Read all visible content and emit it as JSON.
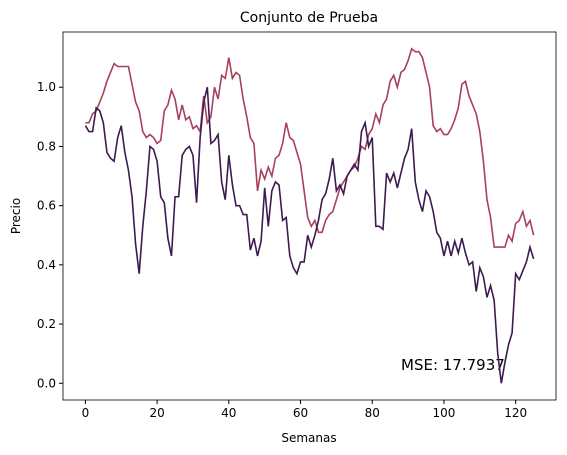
{
  "chart_data": {
    "type": "line",
    "title": "Conjunto de Prueba",
    "xlabel": "Semanas",
    "ylabel": "Precio",
    "annotation": "MSE: 17.7937",
    "x": [
      0,
      1,
      2,
      3,
      4,
      5,
      6,
      7,
      8,
      9,
      10,
      11,
      12,
      13,
      14,
      15,
      16,
      17,
      18,
      19,
      20,
      21,
      22,
      23,
      24,
      25,
      26,
      27,
      28,
      29,
      30,
      31,
      32,
      33,
      34,
      35,
      36,
      37,
      38,
      39,
      40,
      41,
      42,
      43,
      44,
      45,
      46,
      47,
      48,
      49,
      50,
      51,
      52,
      53,
      54,
      55,
      56,
      57,
      58,
      59,
      60,
      61,
      62,
      63,
      64,
      65,
      66,
      67,
      68,
      69,
      70,
      71,
      72,
      73,
      74,
      75,
      76,
      77,
      78,
      79,
      80,
      81,
      82,
      83,
      84,
      85,
      86,
      87,
      88,
      89,
      90,
      91,
      92,
      93,
      94,
      95,
      96,
      97,
      98,
      99,
      100,
      101,
      102,
      103,
      104,
      105,
      106,
      107,
      108,
      109,
      110,
      111,
      112,
      113,
      114,
      115,
      116,
      117,
      118,
      119,
      120,
      121,
      122,
      123,
      124,
      125
    ],
    "series": [
      {
        "color": "#a8405c",
        "values": [
          0.88,
          0.88,
          0.91,
          0.92,
          0.95,
          0.98,
          1.02,
          1.05,
          1.08,
          1.07,
          1.07,
          1.07,
          1.07,
          1.01,
          0.95,
          0.92,
          0.85,
          0.83,
          0.84,
          0.83,
          0.81,
          0.82,
          0.92,
          0.94,
          0.99,
          0.96,
          0.89,
          0.94,
          0.89,
          0.9,
          0.86,
          0.87,
          0.85,
          0.97,
          0.88,
          0.9,
          1.0,
          0.96,
          1.04,
          1.03,
          1.1,
          1.03,
          1.05,
          1.04,
          0.96,
          0.9,
          0.83,
          0.81,
          0.65,
          0.72,
          0.69,
          0.73,
          0.7,
          0.76,
          0.77,
          0.81,
          0.88,
          0.83,
          0.82,
          0.78,
          0.74,
          0.65,
          0.56,
          0.53,
          0.55,
          0.51,
          0.51,
          0.55,
          0.57,
          0.58,
          0.62,
          0.66,
          0.68,
          0.7,
          0.72,
          0.73,
          0.76,
          0.8,
          0.79,
          0.84,
          0.86,
          0.91,
          0.88,
          0.94,
          0.96,
          1.02,
          1.04,
          1.0,
          1.05,
          1.06,
          1.09,
          1.13,
          1.12,
          1.12,
          1.1,
          1.05,
          1.0,
          0.87,
          0.85,
          0.86,
          0.84,
          0.84,
          0.86,
          0.89,
          0.93,
          1.01,
          1.02,
          0.97,
          0.94,
          0.91,
          0.85,
          0.75,
          0.62,
          0.56,
          0.46,
          0.46,
          0.46,
          0.46,
          0.5,
          0.48,
          0.54,
          0.55,
          0.58,
          0.53,
          0.55,
          0.5
        ]
      },
      {
        "color": "#3d1a4f",
        "values": [
          0.87,
          0.85,
          0.85,
          0.93,
          0.92,
          0.88,
          0.78,
          0.76,
          0.75,
          0.83,
          0.87,
          0.78,
          0.72,
          0.63,
          0.47,
          0.37,
          0.53,
          0.65,
          0.8,
          0.79,
          0.75,
          0.63,
          0.61,
          0.49,
          0.43,
          0.63,
          0.63,
          0.77,
          0.79,
          0.8,
          0.77,
          0.61,
          0.83,
          0.95,
          1.0,
          0.81,
          0.82,
          0.84,
          0.68,
          0.62,
          0.77,
          0.67,
          0.6,
          0.6,
          0.57,
          0.57,
          0.45,
          0.49,
          0.43,
          0.48,
          0.66,
          0.53,
          0.65,
          0.68,
          0.67,
          0.55,
          0.56,
          0.43,
          0.39,
          0.37,
          0.41,
          0.41,
          0.5,
          0.46,
          0.5,
          0.55,
          0.62,
          0.64,
          0.69,
          0.76,
          0.65,
          0.67,
          0.64,
          0.7,
          0.72,
          0.74,
          0.72,
          0.85,
          0.88,
          0.8,
          0.83,
          0.53,
          0.53,
          0.52,
          0.71,
          0.68,
          0.71,
          0.66,
          0.71,
          0.76,
          0.79,
          0.86,
          0.68,
          0.62,
          0.58,
          0.65,
          0.63,
          0.58,
          0.51,
          0.49,
          0.43,
          0.48,
          0.43,
          0.48,
          0.44,
          0.49,
          0.44,
          0.4,
          0.41,
          0.31,
          0.39,
          0.36,
          0.29,
          0.33,
          0.28,
          0.1,
          0.0,
          0.07,
          0.13,
          0.17,
          0.37,
          0.35,
          0.38,
          0.41,
          0.46,
          0.42
        ]
      }
    ],
    "xlim": [
      -6.25,
      131.25
    ],
    "xticks": [
      0,
      20,
      40,
      60,
      80,
      100,
      120
    ],
    "ylim": [
      -0.0565,
      1.1865
    ],
    "yticks": [
      {
        "value": 0.0,
        "label": "0.0"
      },
      0.2,
      0.4,
      0.6,
      0.8,
      {
        "value": 1.0,
        "label": "1.0"
      }
    ]
  }
}
